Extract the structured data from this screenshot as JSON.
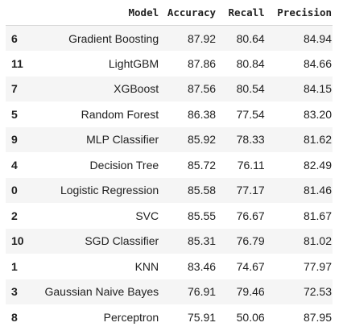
{
  "table": {
    "columns": {
      "index": "",
      "model": "Model",
      "accuracy": "Accuracy",
      "recall": "Recall",
      "precision": "Precision"
    },
    "rows": [
      {
        "index": "6",
        "model": "Gradient Boosting",
        "accuracy": "87.92",
        "recall": "80.64",
        "precision": "84.94"
      },
      {
        "index": "11",
        "model": "LightGBM",
        "accuracy": "87.86",
        "recall": "80.84",
        "precision": "84.66"
      },
      {
        "index": "7",
        "model": "XGBoost",
        "accuracy": "87.56",
        "recall": "80.54",
        "precision": "84.15"
      },
      {
        "index": "5",
        "model": "Random Forest",
        "accuracy": "86.38",
        "recall": "77.54",
        "precision": "83.20"
      },
      {
        "index": "9",
        "model": "MLP Classifier",
        "accuracy": "85.92",
        "recall": "78.33",
        "precision": "81.62"
      },
      {
        "index": "4",
        "model": "Decision Tree",
        "accuracy": "85.72",
        "recall": "76.11",
        "precision": "82.49"
      },
      {
        "index": "0",
        "model": "Logistic Regression",
        "accuracy": "85.58",
        "recall": "77.17",
        "precision": "81.46"
      },
      {
        "index": "2",
        "model": "SVC",
        "accuracy": "85.55",
        "recall": "76.67",
        "precision": "81.67"
      },
      {
        "index": "10",
        "model": "SGD Classifier",
        "accuracy": "85.31",
        "recall": "76.79",
        "precision": "81.02"
      },
      {
        "index": "1",
        "model": "KNN",
        "accuracy": "83.46",
        "recall": "74.67",
        "precision": "77.97"
      },
      {
        "index": "3",
        "model": "Gaussian Naive Bayes",
        "accuracy": "76.91",
        "recall": "79.46",
        "precision": "72.53"
      },
      {
        "index": "8",
        "model": "Perceptron",
        "accuracy": "75.91",
        "recall": "50.06",
        "precision": "87.95"
      }
    ]
  },
  "colors": {
    "text": "#212121",
    "row_stripe": "#f5f5f5",
    "row_plain": "#ffffff",
    "header_border": "#d6d6d6"
  }
}
